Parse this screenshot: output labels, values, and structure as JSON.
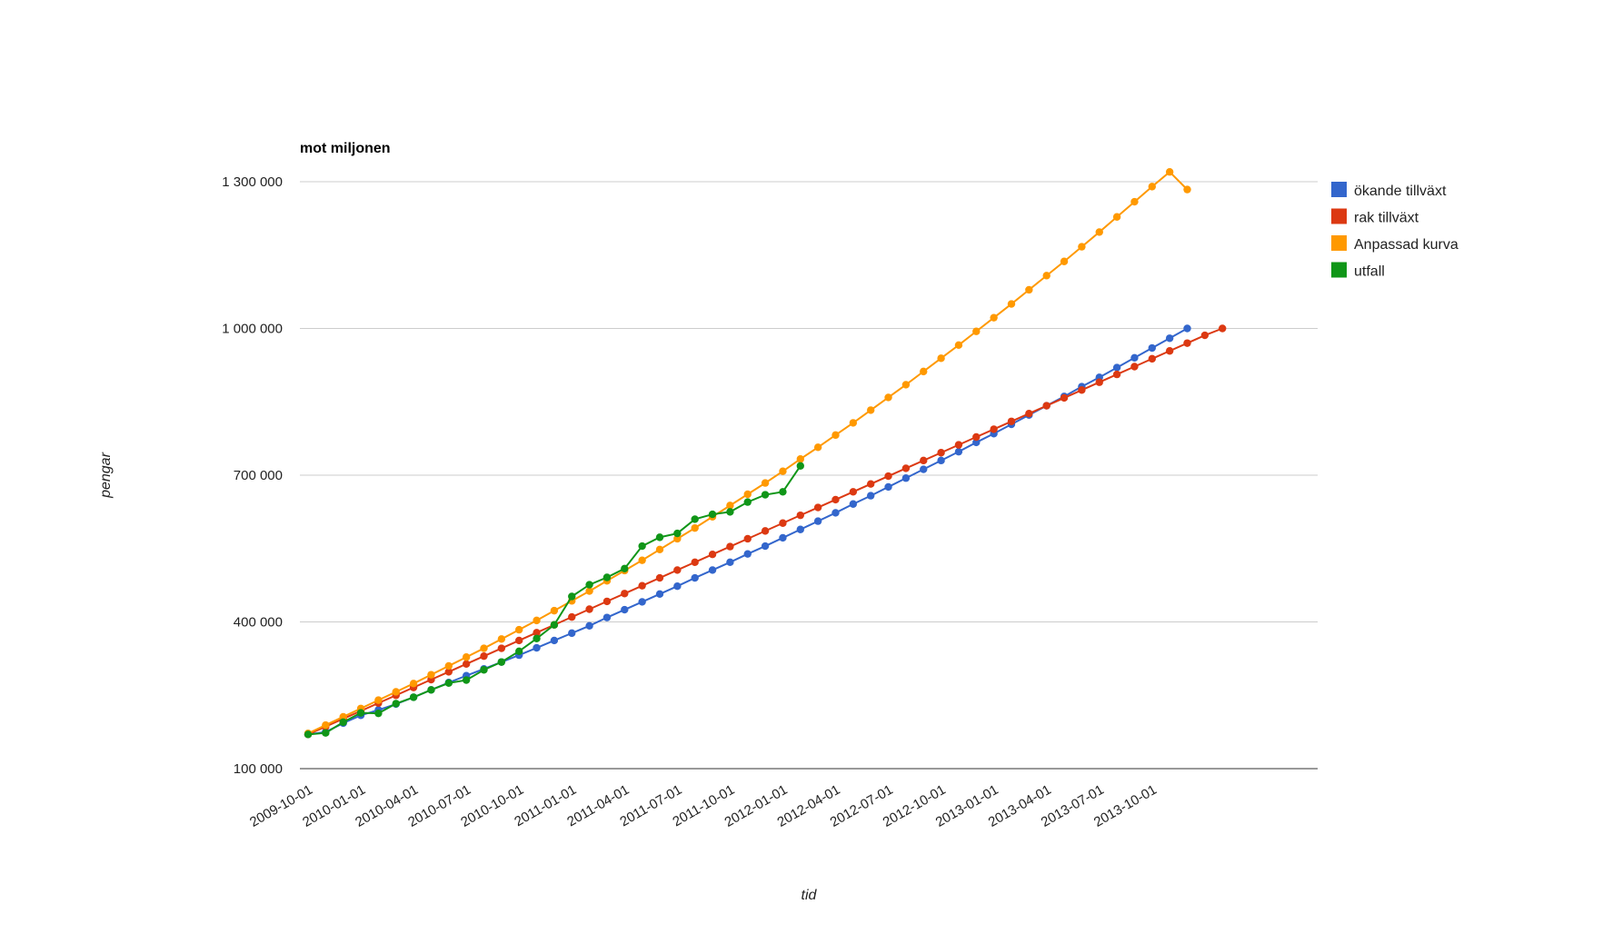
{
  "chart_data": {
    "type": "line",
    "title": "mot miljonen",
    "xlabel": "tid",
    "ylabel": "pengar",
    "ylim": [
      100000,
      1300000
    ],
    "yticks": [
      100000,
      400000,
      700000,
      1000000,
      1300000
    ],
    "ytick_labels": [
      "100 000",
      "400 000",
      "700 000",
      "1 000 000",
      "1 300 000"
    ],
    "x_start": "2009-10-01",
    "x_interval_months": 1,
    "xtick_labels": [
      "2009-10-01",
      "2010-01-01",
      "2010-04-01",
      "2010-07-01",
      "2010-10-01",
      "2011-01-01",
      "2011-04-01",
      "2011-07-01",
      "2011-10-01",
      "2012-01-01",
      "2012-04-01",
      "2012-07-01",
      "2012-10-01",
      "2013-01-01",
      "2013-04-01",
      "2013-07-01",
      "2013-10-01"
    ],
    "grid": true,
    "legend_position": "right",
    "series": [
      {
        "name": "ökande tillväxt",
        "color": "#3366cc",
        "values": [
          170000,
          175000,
          193000,
          209000,
          220000,
          232000,
          246000,
          261000,
          276000,
          290000,
          304000,
          318000,
          332000,
          347000,
          362000,
          377000,
          392000,
          409000,
          425000,
          441000,
          457000,
          473000,
          490000,
          506000,
          522000,
          539000,
          555000,
          572000,
          589000,
          606000,
          623000,
          641000,
          658000,
          676000,
          694000,
          712000,
          730000,
          748000,
          767000,
          785000,
          804000,
          823000,
          842000,
          861000,
          881000,
          900000,
          920000,
          940000,
          960000,
          980000,
          1000000
        ]
      },
      {
        "name": "rak tillväxt",
        "color": "#dc3912",
        "values": [
          170000,
          186000,
          202000,
          218000,
          234000,
          250000,
          266000,
          282000,
          298000,
          314000,
          330000,
          346000,
          362000,
          378000,
          394000,
          410000,
          426000,
          442000,
          458000,
          474000,
          490000,
          506000,
          522000,
          538000,
          554000,
          570000,
          586000,
          602000,
          618000,
          634000,
          650000,
          666000,
          682000,
          698000,
          714000,
          730000,
          746000,
          762000,
          778000,
          794000,
          810000,
          826000,
          842000,
          858000,
          874000,
          890000,
          906000,
          922000,
          938000,
          954000,
          970000,
          986000,
          1000000
        ]
      },
      {
        "name": "Anpassad kurva",
        "color": "#ff9900",
        "values": [
          172000,
          189000,
          206000,
          223000,
          240000,
          257000,
          274000,
          292000,
          310000,
          328000,
          346000,
          365000,
          384000,
          403000,
          423000,
          443000,
          463000,
          484000,
          505000,
          526000,
          548000,
          570000,
          592000,
          615000,
          638000,
          661000,
          684000,
          708000,
          733000,
          757000,
          782000,
          807000,
          833000,
          859000,
          885000,
          912000,
          939000,
          966000,
          994000,
          1022000,
          1050000,
          1079000,
          1108000,
          1137000,
          1167000,
          1197000,
          1228000,
          1259000,
          1290000,
          1320000,
          1284000
        ]
      },
      {
        "name": "utfall",
        "color": "#109618",
        "values": [
          170000,
          173000,
          195000,
          214000,
          213000,
          233000,
          246000,
          261000,
          275000,
          281000,
          302000,
          318000,
          340000,
          366000,
          394000,
          452000,
          476000,
          491000,
          509000,
          555000,
          573000,
          581000,
          610000,
          620000,
          625000,
          645000,
          660000,
          666000,
          719000
        ]
      }
    ]
  }
}
